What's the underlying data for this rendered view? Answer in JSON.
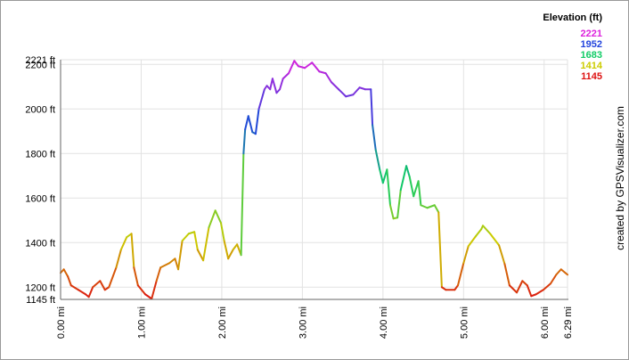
{
  "chart_data": {
    "type": "line",
    "y_title": "Elevation (ft)",
    "credit": "created by GPSVisualizer.com",
    "color_scale": [
      {
        "value": 2221,
        "color": "#dd22dd"
      },
      {
        "value": 1952,
        "color": "#2244dd"
      },
      {
        "value": 1683,
        "color": "#11cc66"
      },
      {
        "value": 1414,
        "color": "#cccc00"
      },
      {
        "value": 1145,
        "color": "#dd1111"
      }
    ],
    "x": [
      0,
      0.04,
      0.09,
      0.13,
      0.22,
      0.31,
      0.35,
      0.4,
      0.49,
      0.55,
      0.6,
      0.69,
      0.75,
      0.82,
      0.88,
      0.91,
      0.96,
      1.05,
      1.13,
      1.19,
      1.24,
      1.35,
      1.42,
      1.46,
      1.51,
      1.59,
      1.66,
      1.7,
      1.77,
      1.84,
      1.92,
      1.99,
      2.03,
      2.08,
      2.14,
      2.19,
      2.24,
      2.27,
      2.29,
      2.33,
      2.38,
      2.42,
      2.46,
      2.53,
      2.56,
      2.6,
      2.63,
      2.68,
      2.72,
      2.76,
      2.83,
      2.9,
      2.95,
      3.03,
      3.12,
      3.21,
      3.29,
      3.36,
      3.45,
      3.54,
      3.63,
      3.71,
      3.78,
      3.85,
      3.87,
      3.91,
      3.96,
      4.0,
      4.05,
      4.09,
      4.13,
      4.18,
      4.22,
      4.29,
      4.33,
      4.38,
      4.44,
      4.47,
      4.55,
      4.64,
      4.69,
      4.73,
      4.78,
      4.89,
      4.93,
      5.0,
      5.06,
      5.15,
      5.22,
      5.24,
      5.33,
      5.44,
      5.51,
      5.57,
      5.66,
      5.73,
      5.79,
      5.84,
      5.9,
      5.99,
      6.08,
      6.15,
      6.21,
      6.29
    ],
    "values": [
      1264,
      1280,
      1248,
      1208,
      1188,
      1168,
      1156,
      1200,
      1228,
      1188,
      1200,
      1288,
      1368,
      1424,
      1440,
      1288,
      1208,
      1168,
      1148,
      1228,
      1288,
      1308,
      1328,
      1280,
      1408,
      1440,
      1448,
      1368,
      1320,
      1468,
      1544,
      1488,
      1408,
      1328,
      1368,
      1392,
      1344,
      1800,
      1908,
      1968,
      1896,
      1888,
      2000,
      2088,
      2104,
      2088,
      2136,
      2072,
      2088,
      2136,
      2160,
      2216,
      2192,
      2184,
      2208,
      2168,
      2160,
      2120,
      2088,
      2056,
      2064,
      2096,
      2088,
      2088,
      1928,
      1816,
      1728,
      1668,
      1728,
      1568,
      1508,
      1512,
      1636,
      1744,
      1696,
      1608,
      1676,
      1568,
      1556,
      1568,
      1536,
      1200,
      1188,
      1188,
      1208,
      1308,
      1384,
      1428,
      1460,
      1476,
      1440,
      1388,
      1304,
      1208,
      1176,
      1228,
      1208,
      1160,
      1168,
      1188,
      1216,
      1256,
      1280,
      1256
    ],
    "xlim": [
      0,
      6.29
    ],
    "ylim": [
      1145,
      2221
    ],
    "xticks": [
      {
        "value": 0,
        "label": "0.00 mi"
      },
      {
        "value": 1,
        "label": "1.00 mi"
      },
      {
        "value": 2,
        "label": "2.00 mi"
      },
      {
        "value": 3,
        "label": "3.00 mi"
      },
      {
        "value": 4,
        "label": "4.00 mi"
      },
      {
        "value": 5,
        "label": "5.00 mi"
      },
      {
        "value": 6,
        "label": "6.00 mi"
      },
      {
        "value": 6.29,
        "label": "6.29 mi"
      }
    ],
    "yticks": [
      {
        "value": 1145,
        "label": "1145 ft"
      },
      {
        "value": 1200,
        "label": "1200 ft"
      },
      {
        "value": 1400,
        "label": "1400 ft"
      },
      {
        "value": 1600,
        "label": "1600 ft"
      },
      {
        "value": 1800,
        "label": "1800 ft"
      },
      {
        "value": 2000,
        "label": "2000 ft"
      },
      {
        "value": 2200,
        "label": "2200 ft"
      },
      {
        "value": 2221,
        "label": "2221 ft"
      }
    ],
    "grid": true
  }
}
